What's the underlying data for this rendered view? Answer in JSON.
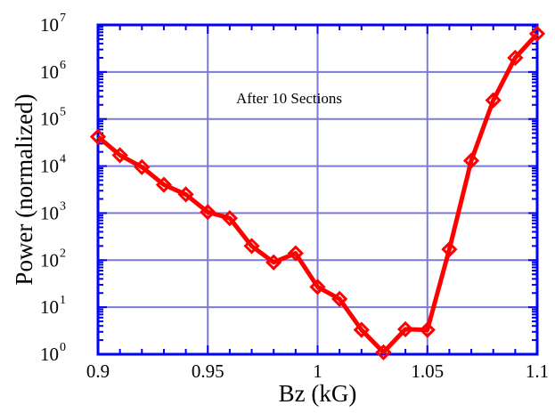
{
  "chart_data": {
    "type": "line",
    "title": "",
    "xlabel": "Bz (kG)",
    "ylabel": "Power (normalized)",
    "annotation": "After 10 Sections",
    "xscale": "linear",
    "yscale": "log",
    "xlim": [
      0.9,
      1.1
    ],
    "ylim": [
      1,
      10000000
    ],
    "xticks": [
      0.9,
      0.95,
      1.0,
      1.05,
      1.1
    ],
    "xtick_labels": [
      "0.9",
      "0.95",
      "1",
      "1.05",
      "1.1"
    ],
    "ytick_exponents": [
      "0",
      "1",
      "2",
      "3",
      "4",
      "5",
      "6",
      "7"
    ],
    "ytick_base": "10",
    "grid": true,
    "line_color": "#ff0000",
    "grid_color": "#7b7bd6",
    "axis_color": "#0000ff",
    "marker": "diamond",
    "series": [
      {
        "x": [
          0.9,
          0.91,
          0.92,
          0.93,
          0.94,
          0.95,
          0.96,
          0.97,
          0.98,
          0.99,
          1.0,
          1.01,
          1.02,
          1.03,
          1.04,
          1.05,
          1.06,
          1.07,
          1.08,
          1.09,
          1.1
        ],
        "y": [
          42000,
          17000,
          9500,
          4000,
          2500,
          1050,
          780,
          200,
          90,
          140,
          27,
          15,
          3.3,
          1.1,
          3.4,
          3.3,
          170,
          13000,
          250000,
          2000000,
          6500000
        ]
      }
    ]
  }
}
